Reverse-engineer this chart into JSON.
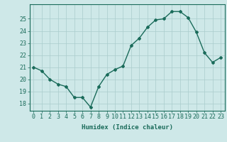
{
  "x": [
    0,
    1,
    2,
    3,
    4,
    5,
    6,
    7,
    8,
    9,
    10,
    11,
    12,
    13,
    14,
    15,
    16,
    17,
    18,
    19,
    20,
    21,
    22,
    23
  ],
  "y": [
    21.0,
    20.7,
    20.0,
    19.6,
    19.4,
    18.5,
    18.5,
    17.7,
    19.4,
    20.4,
    20.8,
    21.1,
    22.8,
    23.4,
    24.3,
    24.9,
    25.0,
    25.6,
    25.6,
    25.1,
    23.9,
    22.2,
    21.4,
    21.8
  ],
  "line_color": "#1a6b5a",
  "marker": "D",
  "marker_size": 2.0,
  "bg_color": "#cee8e8",
  "grid_color": "#aacccc",
  "xlabel": "Humidex (Indice chaleur)",
  "xlabel_fontsize": 6.5,
  "ylabel_ticks": [
    18,
    19,
    20,
    21,
    22,
    23,
    24,
    25
  ],
  "ylim": [
    17.4,
    26.2
  ],
  "xlim": [
    -0.5,
    23.5
  ],
  "tick_fontsize": 6.0,
  "axis_color": "#1a6b5a",
  "linewidth": 1.0
}
